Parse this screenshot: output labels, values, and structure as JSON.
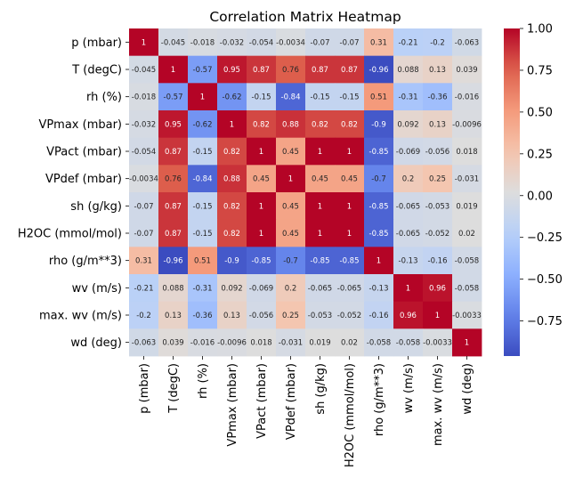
{
  "chart_data": {
    "type": "heatmap",
    "title": "Correlation Matrix Heatmap",
    "colormap": "coolwarm",
    "annotated": true,
    "labels": [
      "p (mbar)",
      "T (degC)",
      "rh (%)",
      "VPmax (mbar)",
      "VPact (mbar)",
      "VPdef (mbar)",
      "sh (g/kg)",
      "H2OC (mmol/mol)",
      "rho (g/m**3)",
      "wv (m/s)",
      "max. wv (m/s)",
      "wd (deg)"
    ],
    "matrix": [
      [
        1,
        -0.045,
        -0.018,
        -0.032,
        -0.054,
        -0.0034,
        -0.07,
        -0.07,
        0.31,
        -0.21,
        -0.2,
        -0.063
      ],
      [
        -0.045,
        1,
        -0.57,
        0.95,
        0.87,
        0.76,
        0.87,
        0.87,
        -0.96,
        0.088,
        0.13,
        0.039
      ],
      [
        -0.018,
        -0.57,
        1,
        -0.62,
        -0.15,
        -0.84,
        -0.15,
        -0.15,
        0.51,
        -0.31,
        -0.36,
        -0.016
      ],
      [
        -0.032,
        0.95,
        -0.62,
        1,
        0.82,
        0.88,
        0.82,
        0.82,
        -0.9,
        0.092,
        0.13,
        -0.0096
      ],
      [
        -0.054,
        0.87,
        -0.15,
        0.82,
        1,
        0.45,
        1,
        1,
        -0.85,
        -0.069,
        -0.056,
        0.018
      ],
      [
        -0.0034,
        0.76,
        -0.84,
        0.88,
        0.45,
        1,
        0.45,
        0.45,
        -0.7,
        0.2,
        0.25,
        -0.031
      ],
      [
        -0.07,
        0.87,
        -0.15,
        0.82,
        1,
        0.45,
        1,
        1,
        -0.85,
        -0.065,
        -0.053,
        0.019
      ],
      [
        -0.07,
        0.87,
        -0.15,
        0.82,
        1,
        0.45,
        1,
        1,
        -0.85,
        -0.065,
        -0.052,
        0.02
      ],
      [
        0.31,
        -0.96,
        0.51,
        -0.9,
        -0.85,
        -0.7,
        -0.85,
        -0.85,
        1,
        -0.13,
        -0.16,
        -0.058
      ],
      [
        -0.21,
        0.088,
        -0.31,
        0.092,
        -0.069,
        0.2,
        -0.065,
        -0.065,
        -0.13,
        1,
        0.96,
        -0.058
      ],
      [
        -0.2,
        0.13,
        -0.36,
        0.13,
        -0.056,
        0.25,
        -0.053,
        -0.052,
        -0.16,
        0.96,
        1,
        -0.0033
      ],
      [
        -0.063,
        0.039,
        -0.016,
        -0.0096,
        0.018,
        -0.031,
        0.019,
        0.02,
        -0.058,
        -0.058,
        -0.0033,
        1
      ]
    ],
    "colorbar": {
      "range": [
        -0.96,
        1
      ],
      "ticks": [
        1.0,
        0.75,
        0.5,
        0.25,
        0.0,
        -0.25,
        -0.5,
        -0.75
      ],
      "tick_labels": [
        "1.00",
        "0.75",
        "0.50",
        "0.25",
        "0.00",
        "−0.25",
        "−0.50",
        "−0.75"
      ]
    }
  }
}
